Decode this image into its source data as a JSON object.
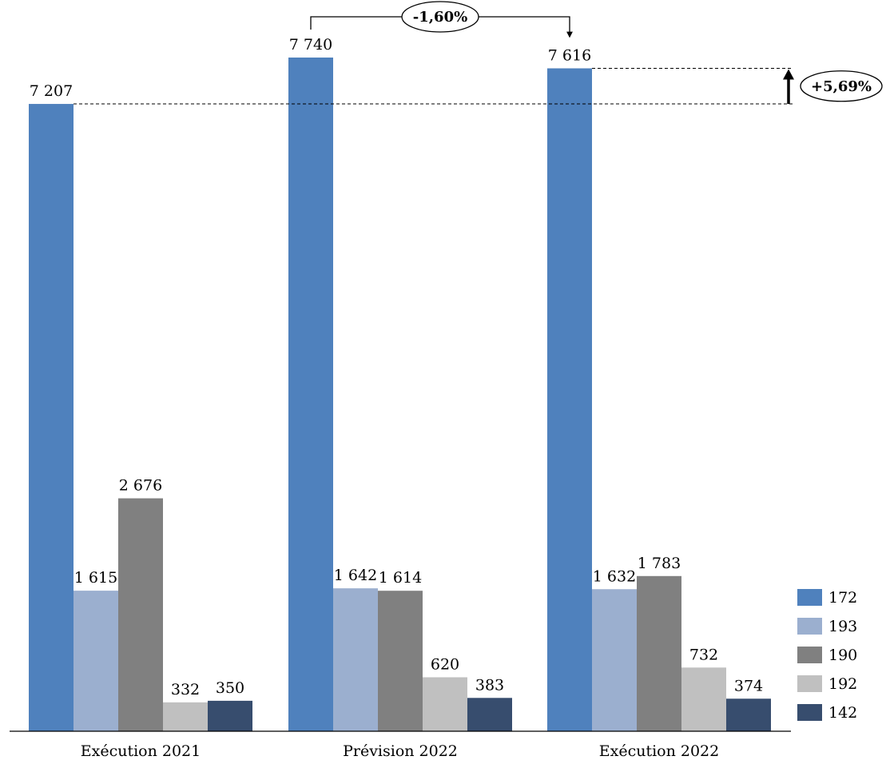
{
  "chart_data": {
    "type": "bar",
    "title": "",
    "xlabel": "",
    "ylabel": "",
    "categories": [
      "Exécution 2021",
      "Prévision 2022",
      "Exécution 2022"
    ],
    "series": [
      {
        "name": "172",
        "color": "#4F81BD",
        "values": [
          7207,
          7740,
          7616
        ],
        "labels": [
          "7 207",
          "7 740",
          "7 616"
        ]
      },
      {
        "name": "193",
        "color": "#9BAFCF",
        "values": [
          1615,
          1642,
          1632
        ],
        "labels": [
          "1 615",
          "1 642",
          "1 632"
        ]
      },
      {
        "name": "190",
        "color": "#808080",
        "values": [
          2676,
          1614,
          1783
        ],
        "labels": [
          "2 676",
          "1 614",
          "1 783"
        ]
      },
      {
        "name": "192",
        "color": "#C0C0C0",
        "values": [
          332,
          620,
          732
        ],
        "labels": [
          "332",
          "620",
          "732"
        ]
      },
      {
        "name": "142",
        "color": "#374D6E",
        "values": [
          350,
          383,
          374
        ],
        "labels": [
          "350",
          "383",
          "374"
        ]
      }
    ],
    "ylim": [
      0,
      7740
    ],
    "grid": false,
    "legend_position": "bottom-right",
    "annotations": [
      {
        "text": "-1,60%",
        "from_category": "Prévision 2022",
        "to_category": "Exécution 2022",
        "series": "172"
      },
      {
        "text": "+5,69%",
        "from_category": "Exécution 2021",
        "to_category": "Exécution 2022",
        "series": "172"
      }
    ]
  }
}
